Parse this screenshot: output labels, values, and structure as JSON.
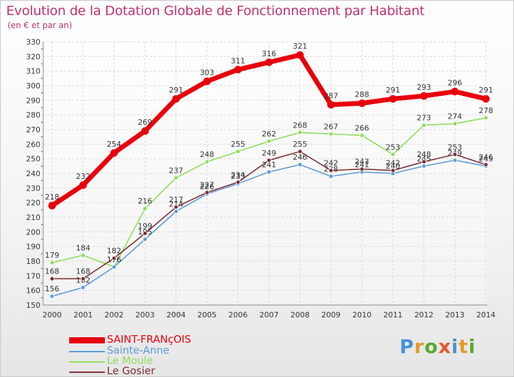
{
  "title": "Evolution de la Dotation Globale de Fonctionnement par Habitant",
  "subtitle": "(en € et par an)",
  "brand": "Proxiti",
  "chart_data": {
    "type": "line",
    "title": "Evolution de la Dotation Globale de Fonctionnement par Habitant",
    "subtitle": "(en € et par an)",
    "xlabel": "",
    "ylabel": "",
    "x": [
      "2000",
      "2001",
      "2002",
      "2003",
      "2004",
      "2005",
      "2006",
      "2007",
      "2008",
      "2009",
      "2010",
      "2011",
      "2012",
      "2013",
      "2014"
    ],
    "ylim": [
      150,
      330
    ],
    "yticks": [
      150,
      160,
      170,
      180,
      190,
      200,
      210,
      220,
      230,
      240,
      250,
      260,
      270,
      280,
      290,
      300,
      310,
      320,
      330
    ],
    "grid": true,
    "legend_position": "bottom-left",
    "series": [
      {
        "name": "Le Moule",
        "color": "#8fdc5a",
        "values": [
          179,
          184,
          176,
          216,
          237,
          248,
          255,
          262,
          268,
          267,
          266,
          253,
          273,
          274,
          278
        ]
      },
      {
        "name": "Sainte-Anne",
        "color": "#5b9bd5",
        "values": [
          156,
          162,
          176,
          195,
          214,
          226,
          233,
          241,
          246,
          238,
          241,
          240,
          245,
          249,
          245
        ]
      },
      {
        "name": "Le Gosier",
        "color": "#7a2e35",
        "values": [
          168,
          168,
          182,
          199,
          217,
          227,
          234,
          249,
          255,
          242,
          243,
          242,
          248,
          253,
          246
        ]
      },
      {
        "name": "SAINT-FRANçOIS",
        "color": "#e8000b",
        "values": [
          218,
          232,
          254,
          269,
          291,
          303,
          311,
          316,
          321,
          287,
          288,
          291,
          293,
          296,
          291
        ]
      }
    ]
  },
  "legend": [
    {
      "label": "SAINT-FRANçOIS",
      "color": "#e8000b"
    },
    {
      "label": "Sainte-Anne",
      "color": "#5b9bd5"
    },
    {
      "label": "Le Moule",
      "color": "#8fdc5a"
    },
    {
      "label": "Le Gosier",
      "color": "#7a2e35"
    }
  ]
}
